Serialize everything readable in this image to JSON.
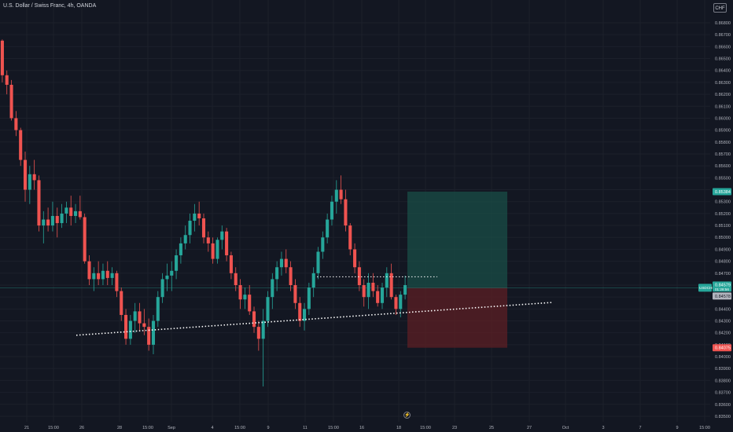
{
  "header": {
    "symbol_title": "U.S. Dollar / Swiss Franc, 4h, OANDA",
    "currency_button": "CHF"
  },
  "colors": {
    "background": "#131722",
    "up": "#26a69a",
    "down": "#ef5350",
    "target_zone": "#1a4d47",
    "stop_zone": "#5c1f24",
    "trendline": "#ffffff",
    "axis_text": "#b2b5be"
  },
  "price_axis": {
    "labels": [
      "0.86800",
      "0.86700",
      "0.86600",
      "0.86500",
      "0.86400",
      "0.86300",
      "0.86200",
      "0.86100",
      "0.86000",
      "0.85900",
      "0.85800",
      "0.85700",
      "0.85600",
      "0.85500",
      "0.85400",
      "0.85300",
      "0.85200",
      "0.85100",
      "0.85000",
      "0.84900",
      "0.84800",
      "0.84700",
      "0.84600",
      "0.84500",
      "0.84400",
      "0.84300",
      "0.84200",
      "0.84100",
      "0.84000",
      "0.83900",
      "0.83800",
      "0.83700",
      "0.83600",
      "0.83500"
    ],
    "markers": {
      "target": "0.85384",
      "current_symbol": "USDCHF",
      "current_price": "0.84579",
      "current_sub": "01:28:56",
      "entry": "0.84578",
      "stop": "0.84075"
    }
  },
  "time_axis": {
    "labels": [
      "21",
      "15:00",
      "26",
      "28",
      "15:00",
      "Sep",
      "4",
      "15:00",
      "9",
      "11",
      "15:00",
      "16",
      "18",
      "15:00",
      "23",
      "25",
      "27",
      "Oct",
      "3",
      "7",
      "9",
      "15:00"
    ]
  },
  "flash_icon": "lightning-icon",
  "chart_data": {
    "type": "candlestick",
    "title": "U.S. Dollar / Swiss Franc, 4h, OANDA",
    "ylim": [
      0.835,
      0.869
    ],
    "candles": [
      [
        0.8665,
        0.8666,
        0.863,
        0.8636
      ],
      [
        0.8636,
        0.864,
        0.862,
        0.8628
      ],
      [
        0.8628,
        0.8632,
        0.8598,
        0.86
      ],
      [
        0.86,
        0.8606,
        0.8585,
        0.859
      ],
      [
        0.859,
        0.8592,
        0.856,
        0.8565
      ],
      [
        0.8565,
        0.8572,
        0.853,
        0.854
      ],
      [
        0.854,
        0.856,
        0.8528,
        0.8553
      ],
      [
        0.8553,
        0.8565,
        0.854,
        0.8548
      ],
      [
        0.8548,
        0.8552,
        0.8505,
        0.851
      ],
      [
        0.851,
        0.8522,
        0.8495,
        0.8515
      ],
      [
        0.8515,
        0.8525,
        0.8505,
        0.851
      ],
      [
        0.851,
        0.853,
        0.8505,
        0.8518
      ],
      [
        0.8518,
        0.8525,
        0.85,
        0.8512
      ],
      [
        0.8512,
        0.8528,
        0.8508,
        0.852
      ],
      [
        0.852,
        0.853,
        0.8512,
        0.8525
      ],
      [
        0.8525,
        0.8535,
        0.851,
        0.8518
      ],
      [
        0.8518,
        0.8528,
        0.8512,
        0.8522
      ],
      [
        0.8522,
        0.8535,
        0.8515,
        0.8517
      ],
      [
        0.8517,
        0.852,
        0.8478,
        0.848
      ],
      [
        0.848,
        0.8485,
        0.846,
        0.8465
      ],
      [
        0.8465,
        0.8475,
        0.8455,
        0.847
      ],
      [
        0.847,
        0.848,
        0.846,
        0.8465
      ],
      [
        0.8465,
        0.8478,
        0.846,
        0.8472
      ],
      [
        0.8472,
        0.848,
        0.846,
        0.8466
      ],
      [
        0.8466,
        0.8475,
        0.846,
        0.847
      ],
      [
        0.847,
        0.8472,
        0.845,
        0.8455
      ],
      [
        0.8455,
        0.8458,
        0.843,
        0.8435
      ],
      [
        0.8435,
        0.844,
        0.841,
        0.8415
      ],
      [
        0.8415,
        0.8435,
        0.841,
        0.843
      ],
      [
        0.843,
        0.8445,
        0.842,
        0.8438
      ],
      [
        0.8438,
        0.8445,
        0.8422,
        0.8428
      ],
      [
        0.8428,
        0.844,
        0.8418,
        0.8425
      ],
      [
        0.8425,
        0.8432,
        0.8405,
        0.841
      ],
      [
        0.841,
        0.8435,
        0.8402,
        0.843
      ],
      [
        0.843,
        0.8455,
        0.8425,
        0.845
      ],
      [
        0.845,
        0.847,
        0.8445,
        0.8465
      ],
      [
        0.8465,
        0.8478,
        0.8455,
        0.8468
      ],
      [
        0.8468,
        0.848,
        0.8455,
        0.8472
      ],
      [
        0.8472,
        0.849,
        0.8465,
        0.8485
      ],
      [
        0.8485,
        0.85,
        0.8478,
        0.8495
      ],
      [
        0.8495,
        0.851,
        0.849,
        0.8502
      ],
      [
        0.8502,
        0.852,
        0.8495,
        0.8514
      ],
      [
        0.8514,
        0.8528,
        0.8505,
        0.852
      ],
      [
        0.852,
        0.853,
        0.851,
        0.8516
      ],
      [
        0.8516,
        0.852,
        0.8495,
        0.85
      ],
      [
        0.85,
        0.8505,
        0.8488,
        0.8495
      ],
      [
        0.8495,
        0.85,
        0.8478,
        0.8482
      ],
      [
        0.8482,
        0.85,
        0.8478,
        0.8498
      ],
      [
        0.8498,
        0.851,
        0.849,
        0.8505
      ],
      [
        0.8505,
        0.8508,
        0.848,
        0.8485
      ],
      [
        0.8485,
        0.8488,
        0.8465,
        0.847
      ],
      [
        0.847,
        0.8475,
        0.8455,
        0.846
      ],
      [
        0.846,
        0.8465,
        0.844,
        0.8448
      ],
      [
        0.8448,
        0.8458,
        0.844,
        0.8452
      ],
      [
        0.8452,
        0.846,
        0.8435,
        0.8438
      ],
      [
        0.8438,
        0.8442,
        0.842,
        0.8425
      ],
      [
        0.8425,
        0.843,
        0.8405,
        0.8415
      ],
      [
        0.8415,
        0.844,
        0.8375,
        0.843
      ],
      [
        0.843,
        0.8455,
        0.8425,
        0.845
      ],
      [
        0.845,
        0.847,
        0.844,
        0.8465
      ],
      [
        0.8465,
        0.848,
        0.8455,
        0.8475
      ],
      [
        0.8475,
        0.8488,
        0.8468,
        0.8482
      ],
      [
        0.8482,
        0.849,
        0.847,
        0.8475
      ],
      [
        0.8475,
        0.848,
        0.8455,
        0.846
      ],
      [
        0.846,
        0.8465,
        0.844,
        0.8445
      ],
      [
        0.8445,
        0.845,
        0.8425,
        0.843
      ],
      [
        0.843,
        0.8445,
        0.8422,
        0.844
      ],
      [
        0.844,
        0.8462,
        0.8435,
        0.8458
      ],
      [
        0.8458,
        0.8475,
        0.845,
        0.847
      ],
      [
        0.847,
        0.8492,
        0.8465,
        0.8488
      ],
      [
        0.8488,
        0.8505,
        0.8482,
        0.85
      ],
      [
        0.85,
        0.852,
        0.8495,
        0.8515
      ],
      [
        0.8515,
        0.8535,
        0.851,
        0.853
      ],
      [
        0.853,
        0.8548,
        0.852,
        0.854
      ],
      [
        0.854,
        0.8552,
        0.8528,
        0.8532
      ],
      [
        0.8532,
        0.854,
        0.8505,
        0.851
      ],
      [
        0.851,
        0.8512,
        0.8485,
        0.849
      ],
      [
        0.849,
        0.8495,
        0.847,
        0.8475
      ],
      [
        0.8475,
        0.848,
        0.8455,
        0.846
      ],
      [
        0.846,
        0.8465,
        0.8442,
        0.845
      ],
      [
        0.845,
        0.847,
        0.844,
        0.8462
      ],
      [
        0.8462,
        0.847,
        0.845,
        0.8455
      ],
      [
        0.8455,
        0.846,
        0.8442,
        0.8445
      ],
      [
        0.8445,
        0.8462,
        0.844,
        0.8458
      ],
      [
        0.8458,
        0.8475,
        0.845,
        0.847
      ],
      [
        0.847,
        0.8478,
        0.8448,
        0.845
      ],
      [
        0.845,
        0.8452,
        0.8435,
        0.844
      ],
      [
        0.844,
        0.8455,
        0.8433,
        0.8452
      ],
      [
        0.8452,
        0.8468,
        0.8448,
        0.846
      ]
    ],
    "trendline": {
      "from": [
        0.8418,
        0.8444
      ]
    },
    "horizontal_level": 0.8467,
    "position": {
      "entry": 0.84578,
      "target": 0.85384,
      "stop": 0.84075
    }
  }
}
